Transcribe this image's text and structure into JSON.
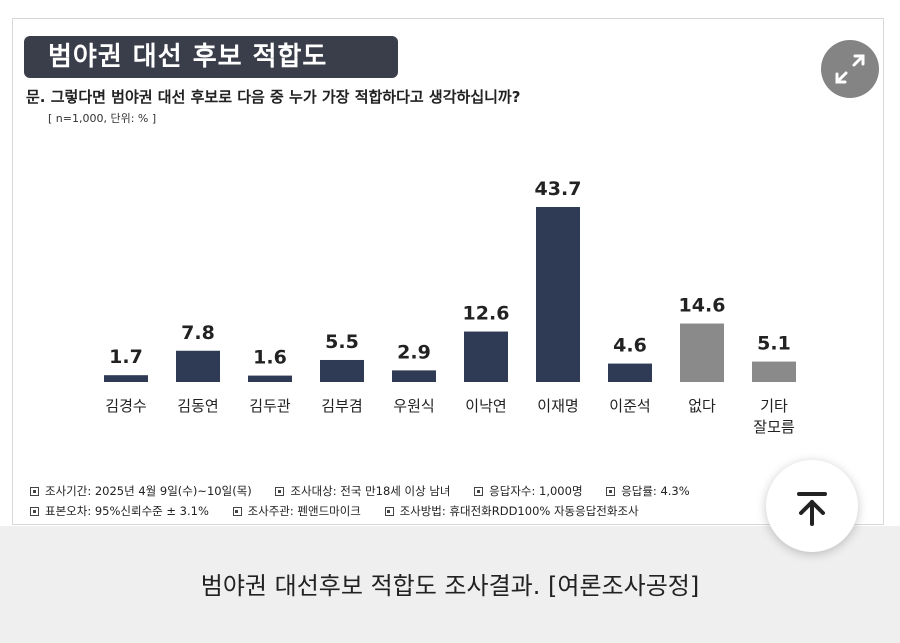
{
  "title": "범야권 대선 후보 적합도",
  "question": "문. 그렇다면 범야권 대선 후보로 다음 중 누가 가장 적합하다고 생각하십니까?",
  "sample": "[ n=1,000, 단위: % ]",
  "chart_data": {
    "type": "bar",
    "categories": [
      "김경수",
      "김동연",
      "김두관",
      "김부겸",
      "우원식",
      "이낙연",
      "이재명",
      "이준석",
      "없다",
      "기타\n잘모름"
    ],
    "values": [
      1.7,
      7.8,
      1.6,
      5.5,
      2.9,
      12.6,
      43.7,
      4.6,
      14.6,
      5.1
    ],
    "value_labels": [
      "1.7",
      "7.8",
      "1.6",
      "5.5",
      "2.9",
      "12.6",
      "43.7",
      "4.6",
      "14.6",
      "5.1"
    ],
    "ylim": [
      0,
      43.7
    ],
    "colors": {
      "candidate": "#2f3a55",
      "other": "#8a8a8a"
    },
    "other_categories_start_index": 8
  },
  "footer": {
    "row1": [
      "조사기간: 2025년 4월 9일(수)~10일(목)",
      "조사대상: 전국 만18세 이상 남녀",
      "응답자수: 1,000명",
      "응답률: 4.3%"
    ],
    "row2": [
      "표본오차: 95%신뢰수준 ± 3.1%",
      "조사주관: 펜앤드마이크",
      "조사방법: 휴대전화RDD100% 자동응답전화조사"
    ]
  },
  "caption": "범야권 대선후보 적합도 조사결과. [여론조사공정]",
  "icons": {
    "expand": "expand-icon",
    "scroll_top": "arrow-up-icon"
  }
}
